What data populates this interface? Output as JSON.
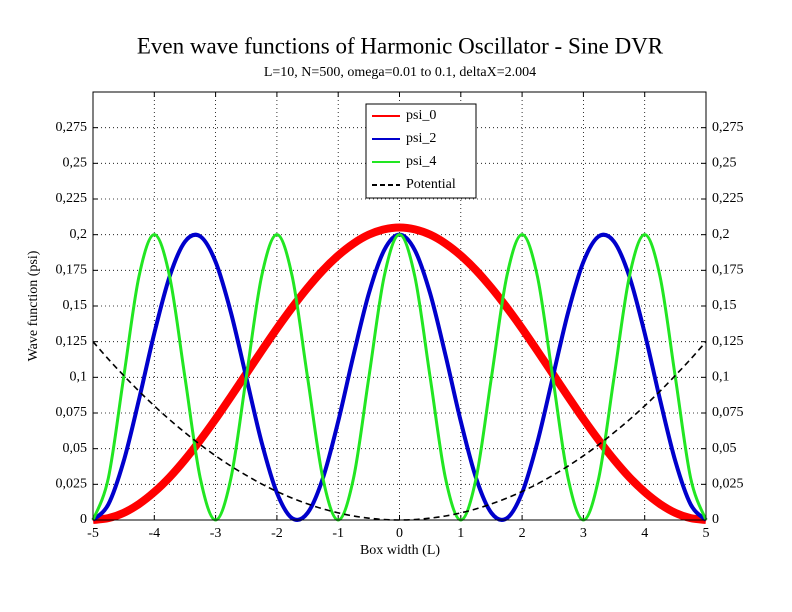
{
  "chart_data": {
    "type": "line",
    "title": "Even wave functions of Harmonic Oscillator - Sine DVR",
    "subtitle": "L=10, N=500, omega=0.01 to 0.1, deltaX=2.004",
    "x_label": "Box width (L)",
    "y_label": "Wave function (psi)",
    "x": [
      -5,
      -4.75,
      -4.5,
      -4.25,
      -4,
      -3.75,
      -3.5,
      -3.25,
      -3,
      -2.75,
      -2.5,
      -2.25,
      -2,
      -1.75,
      -1.5,
      -1.25,
      -1,
      -0.75,
      -0.5,
      -0.25,
      0,
      0.25,
      0.5,
      0.75,
      1,
      1.25,
      1.5,
      1.75,
      2,
      2.25,
      2.5,
      2.75,
      3,
      3.25,
      3.5,
      3.75,
      4,
      4.25,
      4.5,
      4.75,
      5
    ],
    "series": [
      {
        "name": "psi_0",
        "color": "#ff0000",
        "dash": false,
        "values": [
          0,
          0.0013,
          0.005,
          0.0112,
          0.0196,
          0.03,
          0.0423,
          0.056,
          0.0708,
          0.0865,
          0.1025,
          0.1185,
          0.1342,
          0.149,
          0.1627,
          0.175,
          0.1854,
          0.1938,
          0.2,
          0.2037,
          0.205,
          0.2037,
          0.2,
          0.1938,
          0.1854,
          0.175,
          0.1627,
          0.149,
          0.1342,
          0.1185,
          0.1025,
          0.0865,
          0.0708,
          0.056,
          0.0423,
          0.03,
          0.0196,
          0.0112,
          0.005,
          0.0013,
          0
        ]
      },
      {
        "name": "psi_2",
        "color": "#0000cc",
        "dash": false,
        "values": [
          0,
          0.0109,
          0.0412,
          0.0844,
          0.1309,
          0.1707,
          0.1951,
          0.1988,
          0.1809,
          0.1454,
          0.1,
          0.0546,
          0.0191,
          0.0012,
          0.0049,
          0.0293,
          0.0691,
          0.1156,
          0.1588,
          0.1891,
          0.2,
          0.1891,
          0.1588,
          0.1156,
          0.0691,
          0.0293,
          0.0049,
          0.0012,
          0.0191,
          0.0546,
          0.1,
          0.1454,
          0.1809,
          0.1988,
          0.1951,
          0.1707,
          0.1309,
          0.0844,
          0.0412,
          0.0109,
          0
        ]
      },
      {
        "name": "psi_4",
        "color": "#22e622",
        "dash": false,
        "values": [
          0,
          0.0293,
          0.1,
          0.1707,
          0.2,
          0.1707,
          0.1,
          0.0293,
          0,
          0.0293,
          0.1,
          0.1707,
          0.2,
          0.1707,
          0.1,
          0.0293,
          0,
          0.0293,
          0.1,
          0.1707,
          0.2,
          0.1707,
          0.1,
          0.0293,
          0,
          0.0293,
          0.1,
          0.1707,
          0.2,
          0.1707,
          0.1,
          0.0293,
          0,
          0.0293,
          0.1,
          0.1707,
          0.2,
          0.1707,
          0.1,
          0.0293,
          0
        ]
      },
      {
        "name": "Potential",
        "color": "#000000",
        "dash": true,
        "values": [
          0.125,
          0.1128,
          0.1013,
          0.0903,
          0.08,
          0.0703,
          0.0613,
          0.0528,
          0.045,
          0.0378,
          0.0313,
          0.0253,
          0.02,
          0.0153,
          0.0113,
          0.0078,
          0.005,
          0.0028,
          0.0013,
          0.0003,
          0,
          0.0003,
          0.0013,
          0.0028,
          0.005,
          0.0078,
          0.0113,
          0.0153,
          0.02,
          0.0253,
          0.0313,
          0.0378,
          0.045,
          0.0528,
          0.0613,
          0.0703,
          0.08,
          0.0903,
          0.1013,
          0.1128,
          0.125
        ]
      }
    ],
    "xlim": [
      -5,
      5
    ],
    "xticks": [
      -5,
      -4,
      -3,
      -2,
      -1,
      0,
      1,
      2,
      3,
      4,
      5
    ],
    "ylim": [
      0,
      0.3
    ],
    "yticks": [
      0,
      {
        "value": 0.025,
        "label": "0,025"
      },
      {
        "value": 0.05,
        "label": "0,05"
      },
      {
        "value": 0.075,
        "label": "0,075"
      },
      {
        "value": 0.1,
        "label": "0,1"
      },
      {
        "value": 0.125,
        "label": "0,125"
      },
      {
        "value": 0.15,
        "label": "0,15"
      },
      {
        "value": 0.175,
        "label": "0,175"
      },
      {
        "value": 0.2,
        "label": "0,2"
      },
      {
        "value": 0.225,
        "label": "0,225"
      },
      {
        "value": 0.25,
        "label": "0,25"
      },
      {
        "value": 0.275,
        "label": "0,275"
      }
    ],
    "grid": true,
    "legend": "top-center"
  }
}
